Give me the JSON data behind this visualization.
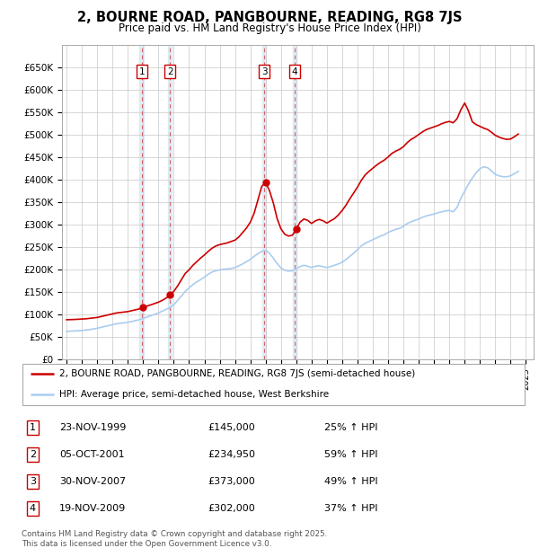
{
  "title": "2, BOURNE ROAD, PANGBOURNE, READING, RG8 7JS",
  "subtitle": "Price paid vs. HM Land Registry's House Price Index (HPI)",
  "ylim": [
    0,
    700000
  ],
  "yticks": [
    0,
    50000,
    100000,
    150000,
    200000,
    250000,
    300000,
    350000,
    400000,
    450000,
    500000,
    550000,
    600000,
    650000
  ],
  "ytick_labels": [
    "£0",
    "£50K",
    "£100K",
    "£150K",
    "£200K",
    "£250K",
    "£300K",
    "£350K",
    "£400K",
    "£450K",
    "£500K",
    "£550K",
    "£600K",
    "£650K"
  ],
  "xlim_start": 1994.7,
  "xlim_end": 2025.5,
  "xticks": [
    1995,
    1996,
    1997,
    1998,
    1999,
    2000,
    2001,
    2002,
    2003,
    2004,
    2005,
    2006,
    2007,
    2008,
    2009,
    2010,
    2011,
    2012,
    2013,
    2014,
    2015,
    2016,
    2017,
    2018,
    2019,
    2020,
    2021,
    2022,
    2023,
    2024,
    2025
  ],
  "background_color": "#ffffff",
  "plot_bg_color": "#ffffff",
  "grid_color": "#c8c8c8",
  "line_color_red": "#cc0000",
  "line_color_blue": "#aaccee",
  "transactions": [
    {
      "id": 1,
      "date": "23-NOV-1999",
      "year": 1999.9,
      "price": 145000,
      "pct": "25% ↑ HPI"
    },
    {
      "id": 2,
      "date": "05-OCT-2001",
      "year": 2001.75,
      "price": 234950,
      "pct": "59% ↑ HPI"
    },
    {
      "id": 3,
      "date": "30-NOV-2007",
      "year": 2007.9,
      "price": 373000,
      "pct": "49% ↑ HPI"
    },
    {
      "id": 4,
      "date": "19-NOV-2009",
      "year": 2009.9,
      "price": 302000,
      "pct": "37% ↑ HPI"
    }
  ],
  "legend_line1": "2, BOURNE ROAD, PANGBOURNE, READING, RG8 7JS (semi-detached house)",
  "legend_line2": "HPI: Average price, semi-detached house, West Berkshire",
  "footer": "Contains HM Land Registry data © Crown copyright and database right 2025.\nThis data is licensed under the Open Government Licence v3.0.",
  "hpi_data": {
    "years": [
      1995.0,
      1995.25,
      1995.5,
      1995.75,
      1996.0,
      1996.25,
      1996.5,
      1996.75,
      1997.0,
      1997.25,
      1997.5,
      1997.75,
      1998.0,
      1998.25,
      1998.5,
      1998.75,
      1999.0,
      1999.25,
      1999.5,
      1999.75,
      2000.0,
      2000.25,
      2000.5,
      2000.75,
      2001.0,
      2001.25,
      2001.5,
      2001.75,
      2002.0,
      2002.25,
      2002.5,
      2002.75,
      2003.0,
      2003.25,
      2003.5,
      2003.75,
      2004.0,
      2004.25,
      2004.5,
      2004.75,
      2005.0,
      2005.25,
      2005.5,
      2005.75,
      2006.0,
      2006.25,
      2006.5,
      2006.75,
      2007.0,
      2007.25,
      2007.5,
      2007.75,
      2008.0,
      2008.25,
      2008.5,
      2008.75,
      2009.0,
      2009.25,
      2009.5,
      2009.75,
      2010.0,
      2010.25,
      2010.5,
      2010.75,
      2011.0,
      2011.25,
      2011.5,
      2011.75,
      2012.0,
      2012.25,
      2012.5,
      2012.75,
      2013.0,
      2013.25,
      2013.5,
      2013.75,
      2014.0,
      2014.25,
      2014.5,
      2014.75,
      2015.0,
      2015.25,
      2015.5,
      2015.75,
      2016.0,
      2016.25,
      2016.5,
      2016.75,
      2017.0,
      2017.25,
      2017.5,
      2017.75,
      2018.0,
      2018.25,
      2018.5,
      2018.75,
      2019.0,
      2019.25,
      2019.5,
      2019.75,
      2020.0,
      2020.25,
      2020.5,
      2020.75,
      2021.0,
      2021.25,
      2021.5,
      2021.75,
      2022.0,
      2022.25,
      2022.5,
      2022.75,
      2023.0,
      2023.25,
      2023.5,
      2023.75,
      2024.0,
      2024.25,
      2024.5
    ],
    "hpi_values": [
      62000,
      62500,
      63000,
      63500,
      64000,
      65000,
      66000,
      67500,
      69000,
      71000,
      73000,
      75000,
      77000,
      79000,
      80000,
      81000,
      82000,
      84000,
      86000,
      88000,
      91000,
      94000,
      97000,
      100000,
      103000,
      107000,
      111000,
      115000,
      121000,
      131000,
      141000,
      151000,
      159000,
      166000,
      172000,
      177000,
      183000,
      189000,
      194000,
      197000,
      199000,
      200000,
      201000,
      202000,
      204000,
      208000,
      212000,
      217000,
      222000,
      229000,
      235000,
      240000,
      242000,
      236000,
      225000,
      213000,
      203000,
      198000,
      196000,
      197000,
      202000,
      206000,
      209000,
      207000,
      204000,
      207000,
      208000,
      206000,
      204000,
      206000,
      209000,
      212000,
      216000,
      222000,
      229000,
      236000,
      244000,
      252000,
      258000,
      262000,
      266000,
      270000,
      274000,
      277000,
      282000,
      286000,
      289000,
      291000,
      296000,
      302000,
      306000,
      309000,
      312000,
      316000,
      319000,
      321000,
      323000,
      326000,
      328000,
      330000,
      331000,
      328000,
      338000,
      358000,
      374000,
      390000,
      403000,
      415000,
      424000,
      428000,
      426000,
      419000,
      411000,
      408000,
      406000,
      406000,
      408000,
      413000,
      418000
    ],
    "red_values": [
      88000,
      88200,
      88500,
      89000,
      89500,
      90000,
      91000,
      92000,
      93000,
      95000,
      97000,
      99000,
      101000,
      103000,
      104000,
      105000,
      106000,
      108000,
      110000,
      112000,
      115000,
      118500,
      121000,
      124000,
      127000,
      131000,
      136000,
      143000,
      151000,
      163000,
      177000,
      191000,
      199000,
      209000,
      217000,
      225000,
      232000,
      240000,
      247000,
      252000,
      255000,
      257000,
      259000,
      262000,
      265000,
      272000,
      282000,
      292000,
      305000,
      325000,
      355000,
      385000,
      393000,
      375000,
      348000,
      313000,
      290000,
      278000,
      274000,
      276000,
      290000,
      305000,
      312000,
      309000,
      302000,
      308000,
      311000,
      308000,
      303000,
      308000,
      313000,
      321000,
      331000,
      343000,
      357000,
      370000,
      383000,
      398000,
      410000,
      418000,
      425000,
      432000,
      438000,
      443000,
      450000,
      458000,
      463000,
      467000,
      473000,
      482000,
      489000,
      494000,
      500000,
      506000,
      511000,
      514000,
      517000,
      520000,
      524000,
      527000,
      529000,
      526000,
      535000,
      555000,
      570000,
      552000,
      528000,
      522000,
      518000,
      514000,
      511000,
      505000,
      498000,
      494000,
      491000,
      489000,
      490000,
      495000,
      501000
    ]
  }
}
